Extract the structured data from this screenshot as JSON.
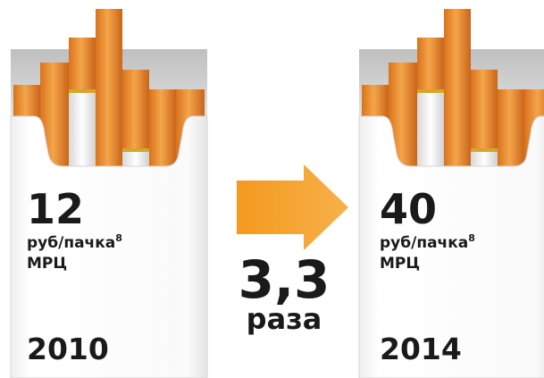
{
  "packs": [
    {
      "price": 12,
      "unit": "руб/пачка",
      "note": "8",
      "label": "МРЦ",
      "year": 2010
    },
    {
      "price": 40,
      "unit": "руб/пачка",
      "note": "8",
      "label": "МРЦ",
      "year": 2014
    }
  ],
  "change": {
    "ratio": "3,3",
    "word": "раза"
  }
}
